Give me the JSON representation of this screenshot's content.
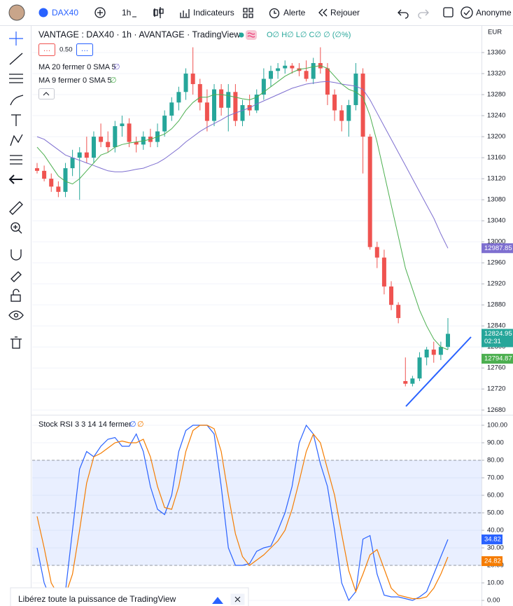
{
  "toolbar": {
    "symbol": "DAX40",
    "interval": "1h",
    "indicators": "Indicateurs",
    "alert": "Alerte",
    "replay": "Rejouer",
    "user": "Anonyme"
  },
  "banner": "Libérez toute la puissance de TradingView",
  "chart_data": [
    {
      "type": "candlestick",
      "title": "VANTAGE : DAX40 · 1h · AVANTAGE · TradingView",
      "ohlc": "O∅ H∅ L∅ C∅ ∅ (∅%)",
      "placeholder": "∅",
      "trade": {
        "sell": "…",
        "size": "0.50",
        "buy": "…"
      },
      "currency": "EUR",
      "countdown": "02:31",
      "up_color": "#26a69a",
      "down_color": "#ef5350",
      "candles": [
        [
          13140,
          13150,
          13130,
          13135
        ],
        [
          13135,
          13145,
          13115,
          13120
        ],
        [
          13120,
          13130,
          13095,
          13105
        ],
        [
          13105,
          13115,
          13085,
          13095
        ],
        [
          13095,
          13150,
          13085,
          13140
        ],
        [
          13140,
          13175,
          13125,
          13160
        ],
        [
          13160,
          13180,
          13080,
          13170
        ],
        [
          13170,
          13200,
          13150,
          13160
        ],
        [
          13160,
          13210,
          13150,
          13200
        ],
        [
          13200,
          13225,
          13180,
          13190
        ],
        [
          13190,
          13210,
          13170,
          13180
        ],
        [
          13180,
          13230,
          13170,
          13220
        ],
        [
          13220,
          13240,
          13200,
          13225
        ],
        [
          13225,
          13235,
          13180,
          13190
        ],
        [
          13190,
          13200,
          13170,
          13185
        ],
        [
          13185,
          13210,
          13175,
          13200
        ],
        [
          13200,
          13215,
          13180,
          13190
        ],
        [
          13190,
          13225,
          13180,
          13210
        ],
        [
          13210,
          13250,
          13200,
          13240
        ],
        [
          13240,
          13275,
          13230,
          13265
        ],
        [
          13265,
          13295,
          13250,
          13285
        ],
        [
          13285,
          13330,
          13270,
          13320
        ],
        [
          13320,
          13370,
          13280,
          13300
        ],
        [
          13300,
          13310,
          13250,
          13265
        ],
        [
          13265,
          13290,
          13210,
          13230
        ],
        [
          13230,
          13300,
          13220,
          13290
        ],
        [
          13290,
          13300,
          13240,
          13255
        ],
        [
          13255,
          13300,
          13210,
          13285
        ],
        [
          13285,
          13300,
          13220,
          13230
        ],
        [
          13230,
          13270,
          13220,
          13260
        ],
        [
          13260,
          13280,
          13240,
          13250
        ],
        [
          13250,
          13290,
          13245,
          13280
        ],
        [
          13280,
          13330,
          13270,
          13310
        ],
        [
          13310,
          13335,
          13295,
          13325
        ],
        [
          13325,
          13340,
          13310,
          13330
        ],
        [
          13330,
          13345,
          13320,
          13335
        ],
        [
          13335,
          13340,
          13320,
          13330
        ],
        [
          13330,
          13340,
          13315,
          13325
        ],
        [
          13325,
          13345,
          13305,
          13310
        ],
        [
          13310,
          13350,
          13300,
          13340
        ],
        [
          13340,
          13370,
          13320,
          13330
        ],
        [
          13330,
          13340,
          13260,
          13280
        ],
        [
          13280,
          13290,
          13230,
          13250
        ],
        [
          13250,
          13260,
          13210,
          13230
        ],
        [
          13230,
          13270,
          13200,
          13260
        ],
        [
          13260,
          13340,
          13250,
          13320
        ],
        [
          13320,
          13330,
          13130,
          13200
        ],
        [
          13200,
          13205,
          12985,
          12990
        ],
        [
          12990,
          13000,
          12950,
          12970
        ],
        [
          12970,
          12985,
          12900,
          12915
        ],
        [
          12915,
          12925,
          12870,
          12880
        ],
        [
          12880,
          12885,
          12845,
          12855
        ],
        [
          12735,
          12780,
          12725,
          12730
        ],
        [
          12730,
          12745,
          12725,
          12740
        ],
        [
          12740,
          12790,
          12735,
          12780
        ],
        [
          12780,
          12800,
          12765,
          12795
        ],
        [
          12795,
          12810,
          12770,
          12785
        ],
        [
          12785,
          12810,
          12775,
          12800
        ],
        [
          12800,
          12855,
          12795,
          12824.95
        ]
      ],
      "series": [
        {
          "name": "MA 20 fermer 0 SMA 5",
          "color": "#7e6fd0",
          "values": [
            13200,
            13195,
            13185,
            13175,
            13165,
            13160,
            13155,
            13150,
            13145,
            13140,
            13135,
            13133,
            13133,
            13135,
            13138,
            13140,
            13145,
            13150,
            13158,
            13168,
            13178,
            13190,
            13200,
            13210,
            13218,
            13225,
            13232,
            13240,
            13245,
            13250,
            13255,
            13262,
            13268,
            13274,
            13280,
            13286,
            13292,
            13296,
            13300,
            13302,
            13304,
            13305,
            13303,
            13300,
            13298,
            13296,
            13290,
            13270,
            13245,
            13220,
            13195,
            13170,
            13145,
            13120,
            13095,
            13070,
            13045,
            13015,
            12987.85
          ]
        },
        {
          "name": "MA 9 fermer 0 SMA 5",
          "color": "#4caf50",
          "values": [
            13180,
            13165,
            13145,
            13125,
            13115,
            13110,
            13120,
            13135,
            13150,
            13165,
            13170,
            13180,
            13185,
            13188,
            13190,
            13192,
            13195,
            13200,
            13205,
            13215,
            13230,
            13250,
            13265,
            13275,
            13275,
            13280,
            13280,
            13278,
            13275,
            13272,
            13270,
            13275,
            13285,
            13295,
            13305,
            13315,
            13322,
            13328,
            13330,
            13333,
            13335,
            13330,
            13315,
            13300,
            13290,
            13285,
            13275,
            13240,
            13190,
            13130,
            13070,
            13010,
            12950,
            12910,
            12870,
            12840,
            12815,
            12800,
            12794.87
          ]
        }
      ],
      "ylim": [
        12671,
        13412
      ],
      "yticks": [
        13360,
        13320,
        13280,
        13240,
        13200,
        13160,
        13120,
        13080,
        13040,
        13000,
        12960,
        12920,
        12880,
        12840,
        12800,
        12760,
        12720,
        12680
      ],
      "grid": true
    },
    {
      "type": "line",
      "title": "Stock RSI 3 3 14 14 fermer",
      "placeholder": "∅",
      "series": [
        {
          "color": "#2962ff",
          "values": [
            30,
            10,
            0,
            0,
            5,
            40,
            75,
            85,
            82,
            88,
            92,
            93,
            88,
            88,
            95,
            85,
            65,
            52,
            49,
            60,
            85,
            97,
            100,
            100,
            100,
            95,
            65,
            30,
            20,
            20,
            21,
            28,
            30,
            31,
            40,
            50,
            65,
            90,
            100,
            95,
            78,
            65,
            40,
            10,
            0,
            5,
            35,
            37,
            15,
            3,
            2,
            2,
            1,
            0,
            2,
            5,
            15,
            25,
            34.82
          ]
        },
        {
          "color": "#f57c00",
          "values": [
            48,
            30,
            10,
            3,
            3,
            15,
            40,
            67,
            82,
            84,
            87,
            90,
            91,
            90,
            90,
            92,
            82,
            65,
            53,
            52,
            65,
            85,
            97,
            100,
            100,
            98,
            85,
            60,
            38,
            25,
            20,
            23,
            26,
            30,
            34,
            40,
            52,
            68,
            85,
            95,
            90,
            75,
            60,
            38,
            17,
            5,
            15,
            26,
            29,
            18,
            7,
            3,
            2,
            1,
            1,
            2,
            7,
            15,
            24.82
          ]
        }
      ],
      "bands": [
        80,
        50,
        20
      ],
      "band_color": "#2962ff",
      "ylim": [
        -3.2,
        106
      ],
      "yticks": [
        100,
        90,
        80,
        70,
        60,
        50,
        40,
        30,
        20,
        10,
        0
      ],
      "grid": true
    }
  ]
}
